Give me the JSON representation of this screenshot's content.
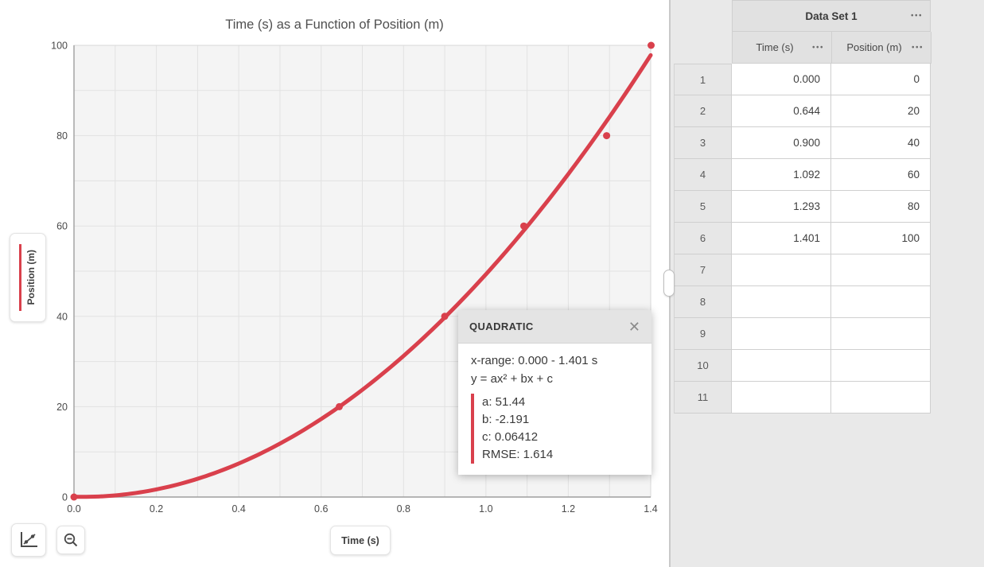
{
  "graph": {
    "title": "Time (s) as a Function of Position (m)",
    "x_axis_label": "Time (s)",
    "y_axis_label": "Position (m)"
  },
  "chart_data": {
    "type": "scatter",
    "title": "Time (s) as a Function of Position (m)",
    "xlabel": "Time (s)",
    "ylabel": "Position (m)",
    "xlim": [
      0,
      1.4
    ],
    "ylim": [
      0,
      100
    ],
    "x_ticks": [
      0,
      0.2,
      0.4,
      0.6,
      0.8,
      1.0,
      1.2,
      1.4
    ],
    "x_tick_labels": [
      "0.0",
      "0.2",
      "0.4",
      "0.6",
      "0.8",
      "1.0",
      "1.2",
      "1.4"
    ],
    "x_minor_step": 0.1,
    "y_ticks": [
      0,
      20,
      40,
      60,
      80,
      100
    ],
    "y_tick_labels": [
      "0",
      "20",
      "40",
      "60",
      "80",
      "100"
    ],
    "y_minor_step": 10,
    "grid": true,
    "series_color": "#d9404c",
    "points": {
      "x": [
        0.0,
        0.644,
        0.9,
        1.092,
        1.293,
        1.401
      ],
      "y": [
        0,
        20,
        40,
        60,
        80,
        100
      ]
    },
    "fit": {
      "type": "quadratic",
      "a": 51.44,
      "b": -2.191,
      "c": 0.06412,
      "x_start": 0,
      "x_end": 1.4,
      "rmse": 1.614
    }
  },
  "fit_box": {
    "title": "QUADRATIC",
    "x_range": "x-range: 0.000 - 1.401 s",
    "equation": "y = ax² + bx + c",
    "lines": [
      "a: 51.44",
      "b: -2.191",
      "c: 0.06412",
      "RMSE: 1.614"
    ]
  },
  "table": {
    "title": "Data Set 1",
    "columns": [
      {
        "label": "Time (s)"
      },
      {
        "label": "Position (m)"
      }
    ],
    "rows": [
      {
        "n": "1",
        "time": "0.000",
        "position": "0"
      },
      {
        "n": "2",
        "time": "0.644",
        "position": "20"
      },
      {
        "n": "3",
        "time": "0.900",
        "position": "40"
      },
      {
        "n": "4",
        "time": "1.092",
        "position": "60"
      },
      {
        "n": "5",
        "time": "1.293",
        "position": "80"
      },
      {
        "n": "6",
        "time": "1.401",
        "position": "100"
      },
      {
        "n": "7",
        "time": "",
        "position": ""
      },
      {
        "n": "8",
        "time": "",
        "position": ""
      },
      {
        "n": "9",
        "time": "",
        "position": ""
      },
      {
        "n": "10",
        "time": "",
        "position": ""
      },
      {
        "n": "11",
        "time": "",
        "position": ""
      }
    ]
  },
  "icons": {
    "close": "✕",
    "menu_dots": "•••"
  }
}
